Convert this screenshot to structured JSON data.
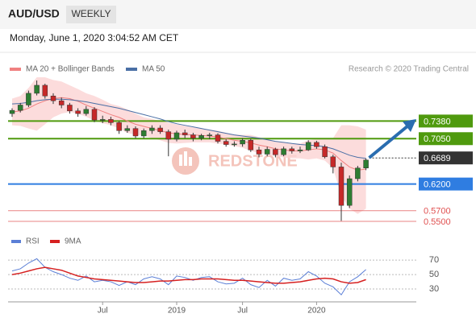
{
  "header": {
    "symbol": "AUD/USD",
    "period": "WEEKLY",
    "date": "Monday, June 1, 2020 3:04:52 AM CET",
    "credit": "Research © 2020 Trading Central",
    "watermark": "REDSTONE"
  },
  "chart_data": [
    {
      "type": "candlestick",
      "open": [
        0.752,
        0.758,
        0.768,
        0.79,
        0.805,
        0.785,
        0.776,
        0.768,
        0.757,
        0.752,
        0.76,
        0.74,
        0.741,
        0.735,
        0.72,
        0.724,
        0.71,
        0.72,
        0.725,
        0.718,
        0.704,
        0.716,
        0.712,
        0.706,
        0.711,
        0.712,
        0.7,
        0.694,
        0.695,
        0.702,
        0.684,
        0.676,
        0.685,
        0.675,
        0.686,
        0.682,
        0.684,
        0.698,
        0.69,
        0.671,
        0.652,
        0.58,
        0.63,
        0.65
      ],
      "high": [
        0.762,
        0.772,
        0.795,
        0.814,
        0.808,
        0.79,
        0.782,
        0.772,
        0.762,
        0.766,
        0.764,
        0.748,
        0.746,
        0.738,
        0.73,
        0.728,
        0.724,
        0.73,
        0.73,
        0.722,
        0.72,
        0.722,
        0.716,
        0.714,
        0.716,
        0.715,
        0.704,
        0.7,
        0.706,
        0.705,
        0.69,
        0.69,
        0.688,
        0.69,
        0.69,
        0.69,
        0.702,
        0.701,
        0.694,
        0.675,
        0.66,
        0.636,
        0.654,
        0.668
      ],
      "low": [
        0.746,
        0.754,
        0.764,
        0.786,
        0.78,
        0.77,
        0.762,
        0.752,
        0.746,
        0.748,
        0.736,
        0.734,
        0.73,
        0.714,
        0.716,
        0.706,
        0.706,
        0.714,
        0.714,
        0.672,
        0.7,
        0.706,
        0.7,
        0.702,
        0.704,
        0.696,
        0.69,
        0.69,
        0.69,
        0.68,
        0.67,
        0.672,
        0.67,
        0.672,
        0.677,
        0.678,
        0.682,
        0.686,
        0.668,
        0.64,
        0.551,
        0.575,
        0.625,
        0.646
      ],
      "close": [
        0.758,
        0.768,
        0.79,
        0.805,
        0.785,
        0.776,
        0.768,
        0.757,
        0.752,
        0.76,
        0.74,
        0.741,
        0.735,
        0.72,
        0.724,
        0.71,
        0.72,
        0.725,
        0.718,
        0.704,
        0.716,
        0.712,
        0.706,
        0.711,
        0.712,
        0.7,
        0.694,
        0.695,
        0.702,
        0.684,
        0.676,
        0.685,
        0.675,
        0.686,
        0.682,
        0.684,
        0.698,
        0.69,
        0.671,
        0.652,
        0.58,
        0.63,
        0.65,
        0.665
      ],
      "up_color": "#2e7d32",
      "down_color": "#c62828",
      "series": [
        {
          "name": "MA 20 + Bollinger Bands",
          "color": "#f08080",
          "band_color": "#fbd3d3",
          "values": [
            0.755,
            0.757,
            0.762,
            0.77,
            0.776,
            0.78,
            0.782,
            0.78,
            0.775,
            0.768,
            0.762,
            0.756,
            0.75,
            0.745,
            0.738,
            0.732,
            0.728,
            0.724,
            0.72,
            0.716,
            0.714,
            0.713,
            0.712,
            0.711,
            0.71,
            0.708,
            0.705,
            0.702,
            0.7,
            0.697,
            0.693,
            0.69,
            0.686,
            0.684,
            0.682,
            0.682,
            0.684,
            0.686,
            0.684,
            0.678,
            0.664,
            0.652,
            0.646,
            0.648
          ],
          "upper": [
            0.78,
            0.785,
            0.8,
            0.82,
            0.82,
            0.815,
            0.812,
            0.805,
            0.798,
            0.79,
            0.785,
            0.778,
            0.77,
            0.766,
            0.76,
            0.752,
            0.745,
            0.742,
            0.738,
            0.735,
            0.732,
            0.729,
            0.726,
            0.724,
            0.722,
            0.72,
            0.716,
            0.713,
            0.712,
            0.712,
            0.708,
            0.704,
            0.7,
            0.698,
            0.696,
            0.696,
            0.702,
            0.704,
            0.704,
            0.706,
            0.73,
            0.73,
            0.728,
            0.722
          ],
          "lower": [
            0.73,
            0.729,
            0.724,
            0.72,
            0.732,
            0.745,
            0.752,
            0.755,
            0.752,
            0.746,
            0.739,
            0.734,
            0.73,
            0.724,
            0.716,
            0.712,
            0.711,
            0.706,
            0.702,
            0.697,
            0.696,
            0.697,
            0.698,
            0.698,
            0.698,
            0.696,
            0.694,
            0.691,
            0.688,
            0.682,
            0.678,
            0.676,
            0.672,
            0.67,
            0.668,
            0.668,
            0.666,
            0.668,
            0.664,
            0.65,
            0.598,
            0.574,
            0.564,
            0.574
          ]
        },
        {
          "name": "MA 50",
          "color": "#4a6fa5",
          "values": [
            0.77,
            0.771,
            0.773,
            0.776,
            0.778,
            0.779,
            0.779,
            0.778,
            0.776,
            0.774,
            0.771,
            0.768,
            0.765,
            0.762,
            0.758,
            0.754,
            0.75,
            0.746,
            0.742,
            0.737,
            0.733,
            0.73,
            0.727,
            0.724,
            0.721,
            0.718,
            0.715,
            0.712,
            0.71,
            0.708,
            0.706,
            0.703,
            0.7,
            0.698,
            0.696,
            0.694,
            0.693,
            0.692,
            0.69,
            0.686,
            0.68,
            0.674,
            0.67,
            0.668
          ]
        }
      ],
      "levels": [
        {
          "value": 0.738,
          "label": "0.7380",
          "color": "#4f9a0e",
          "line": "solid",
          "box": true
        },
        {
          "value": 0.705,
          "label": "0.7050",
          "color": "#4f9a0e",
          "line": "solid",
          "box": true
        },
        {
          "value": 0.6689,
          "label": "0.6689",
          "color": "#333333",
          "line": "dotted",
          "box": true
        },
        {
          "value": 0.62,
          "label": "0.6200",
          "color": "#2f7de1",
          "line": "solid",
          "box": true
        },
        {
          "value": 0.57,
          "label": "0.5700",
          "color": "#e05050",
          "line": "solid",
          "box": false
        },
        {
          "value": 0.55,
          "label": "0.5500",
          "color": "#e05050",
          "line": "solid",
          "box": false
        }
      ],
      "ylim": [
        0.535,
        0.82
      ]
    },
    {
      "type": "line",
      "categories": [
        null,
        null,
        null,
        null,
        null,
        null,
        null,
        null,
        null,
        null,
        null,
        "Jul",
        null,
        null,
        null,
        null,
        null,
        null,
        null,
        null,
        "2019",
        null,
        null,
        null,
        null,
        null,
        null,
        null,
        "Jul",
        null,
        null,
        null,
        null,
        null,
        null,
        null,
        null,
        "2020",
        null,
        null,
        null,
        null,
        null,
        null
      ],
      "series": [
        {
          "name": "RSI",
          "color": "#5b7fd6",
          "values": [
            55,
            58,
            66,
            72,
            60,
            54,
            50,
            45,
            42,
            48,
            40,
            42,
            40,
            35,
            40,
            36,
            44,
            47,
            44,
            36,
            48,
            46,
            42,
            46,
            47,
            40,
            37,
            38,
            45,
            36,
            32,
            42,
            34,
            45,
            42,
            44,
            54,
            48,
            38,
            33,
            22,
            40,
            47,
            57
          ]
        },
        {
          "name": "9MA",
          "color": "#d62020",
          "values": [
            50,
            52,
            55,
            58,
            60,
            58,
            56,
            52,
            48,
            46,
            44,
            43,
            42,
            41,
            40,
            39,
            39,
            40,
            41,
            41,
            42,
            43,
            43,
            44,
            44,
            44,
            43,
            42,
            42,
            41,
            40,
            39,
            38,
            38,
            39,
            40,
            42,
            44,
            45,
            44,
            40,
            38,
            39,
            43
          ]
        }
      ],
      "ylim": [
        20,
        78
      ],
      "yticks": [
        70,
        50,
        30
      ]
    }
  ]
}
